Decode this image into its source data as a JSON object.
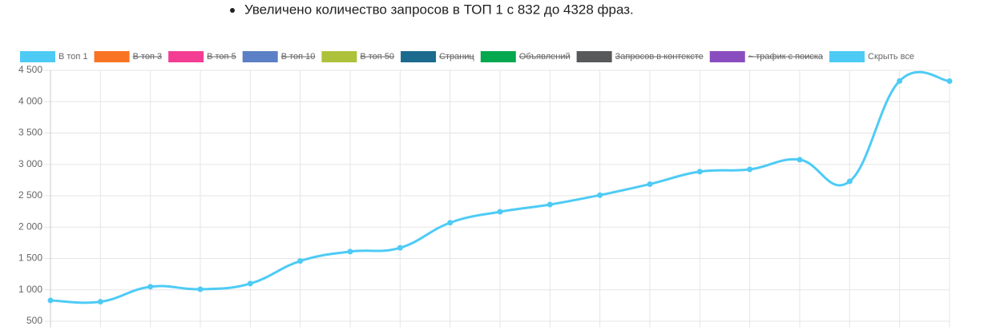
{
  "bullet": "Увеличено количество запросов в ТОП 1 с 832 до 4328 фраз.",
  "chart_data": {
    "type": "line",
    "categories": [
      null,
      null,
      null,
      null,
      null,
      null,
      null,
      null,
      null,
      null,
      null,
      null,
      null,
      null,
      null,
      null,
      null,
      null,
      null
    ],
    "series": [
      {
        "name": "В топ 1",
        "color": "#4ecbf5",
        "values": [
          832,
          810,
          1050,
          1010,
          1100,
          1460,
          1610,
          1670,
          2070,
          2245,
          2360,
          2510,
          2685,
          2885,
          2920,
          3075,
          2730,
          4330,
          4328
        ]
      }
    ],
    "hidden_series": [
      {
        "name": "В топ 3",
        "color": "#f97324"
      },
      {
        "name": "В топ 5",
        "color": "#f23d92"
      },
      {
        "name": "В топ 10",
        "color": "#5b80c5"
      },
      {
        "name": "В топ 50",
        "color": "#adc23a"
      },
      {
        "name": "Страниц",
        "color": "#1c6a8e"
      },
      {
        "name": "Объявлений",
        "color": "#06a84f"
      },
      {
        "name": "Запросов в контексте",
        "color": "#58595b"
      },
      {
        "name": "~ трафик с поиска",
        "color": "#8a4dbf"
      }
    ],
    "hide_all": {
      "name": "Скрыть все",
      "color": "#4ecbf5"
    },
    "ylim": [
      500,
      4500
    ],
    "yticks": [
      500,
      {
        "value": 1000,
        "label": "1 000"
      },
      {
        "value": 1500,
        "label": "1 500"
      },
      {
        "value": 2000,
        "label": "2 000"
      },
      {
        "value": 2500,
        "label": "2 500"
      },
      {
        "value": 3000,
        "label": "3 000"
      },
      {
        "value": 3500,
        "label": "3 500"
      },
      {
        "value": 4000,
        "label": "4 000"
      },
      {
        "value": 4500,
        "label": "4 500"
      }
    ],
    "grid": true
  }
}
